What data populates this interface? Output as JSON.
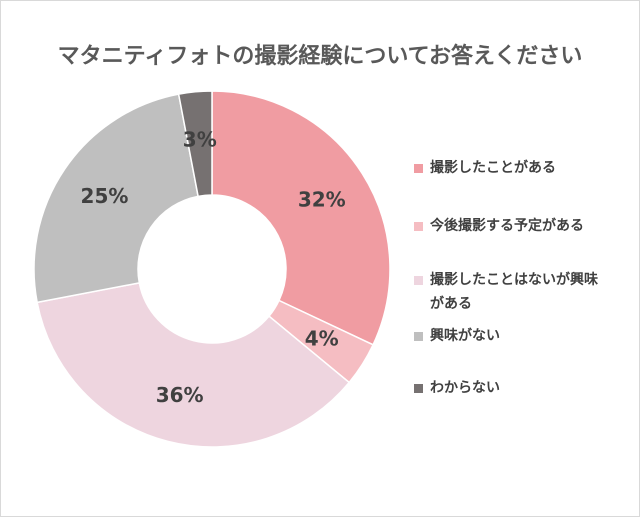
{
  "chart_data": {
    "type": "pie",
    "title": "マタニティフォトの撮影経験についてお答えください",
    "categories": [
      "撮影したことがある",
      "今後撮影する予定がある",
      "撮影したことはないが興味がある",
      "興味がない",
      "わからない"
    ],
    "values": [
      32,
      4,
      36,
      25,
      3
    ],
    "data_labels": [
      "32%",
      "4%",
      "36%",
      "25%",
      "3%"
    ],
    "colors": [
      "#F09CA2",
      "#F5BDC2",
      "#EED5DF",
      "#BFBFBF",
      "#767171"
    ],
    "legend_position": "right",
    "donut": true
  }
}
